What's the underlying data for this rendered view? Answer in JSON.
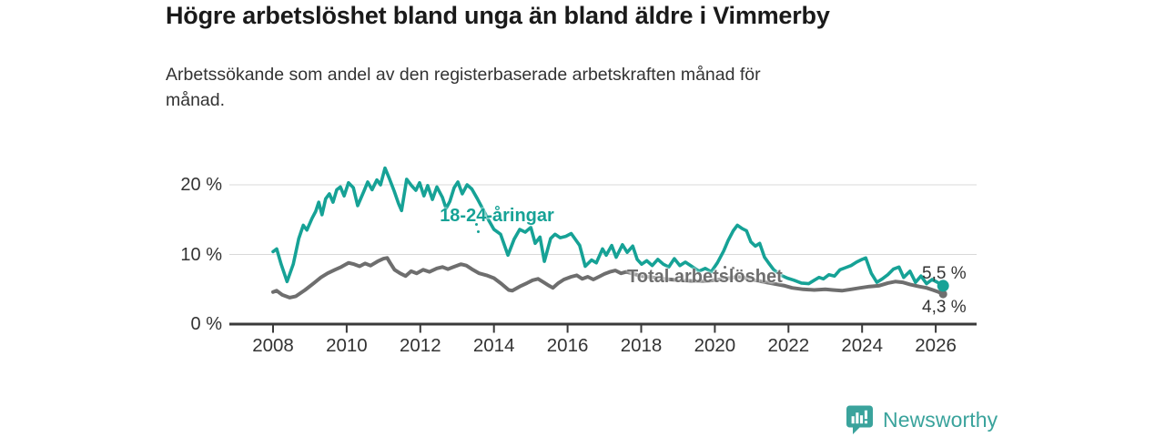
{
  "header": {
    "title": "Högre arbetslöshet bland unga än bland äldre i Vimmerby",
    "subtitle": "Arbetssökande som andel av den registerbaserade arbetskraften månad för månad."
  },
  "branding": {
    "logo_text": "Newsworthy",
    "logo_icon": "chart-bars-speech-bubble-icon",
    "brand_color": "#3aa39c"
  },
  "chart_data": {
    "type": "line",
    "title": "Högre arbetslöshet bland unga än bland äldre i Vimmerby",
    "subtitle": "Arbetssökande som andel av den registerbaserade arbetskraften månad för månad.",
    "xlabel": "",
    "ylabel": "",
    "grid": true,
    "legend_position": "inline-labels",
    "x_axis": {
      "ticks": [
        2008,
        2010,
        2012,
        2014,
        2016,
        2018,
        2020,
        2022,
        2024,
        2026
      ],
      "range": [
        2006.8,
        2027.1
      ]
    },
    "y_axis": {
      "ticks": [
        0,
        10,
        20
      ],
      "tick_labels": [
        "0 %",
        "10 %",
        "20 %"
      ],
      "range": [
        0,
        24
      ]
    },
    "style": {
      "grid_color": "#d9d9d9",
      "axis_color": "#3a3a3a",
      "tick_label_color": "#333333"
    },
    "series": [
      {
        "name": "18-24-åringar",
        "color": "#16a296",
        "line_width": 3.6,
        "end_label": "5,5 %",
        "end_value": 5.5,
        "end_dot": true,
        "dot_radius": 6.5,
        "points": [
          [
            2008.0,
            10.4
          ],
          [
            2008.1,
            10.8
          ],
          [
            2008.22,
            8.6
          ],
          [
            2008.38,
            6.1
          ],
          [
            2008.55,
            8.6
          ],
          [
            2008.7,
            12.3
          ],
          [
            2008.82,
            14.2
          ],
          [
            2008.92,
            13.5
          ],
          [
            2009.06,
            15.2
          ],
          [
            2009.16,
            16.2
          ],
          [
            2009.24,
            17.5
          ],
          [
            2009.33,
            15.7
          ],
          [
            2009.43,
            18.0
          ],
          [
            2009.53,
            18.7
          ],
          [
            2009.63,
            17.5
          ],
          [
            2009.73,
            19.3
          ],
          [
            2009.83,
            19.7
          ],
          [
            2009.93,
            18.4
          ],
          [
            2010.05,
            20.3
          ],
          [
            2010.18,
            19.6
          ],
          [
            2010.3,
            17.0
          ],
          [
            2010.47,
            19.1
          ],
          [
            2010.57,
            20.4
          ],
          [
            2010.69,
            19.3
          ],
          [
            2010.82,
            20.7
          ],
          [
            2010.92,
            20.0
          ],
          [
            2011.04,
            22.4
          ],
          [
            2011.16,
            20.9
          ],
          [
            2011.29,
            19.1
          ],
          [
            2011.41,
            17.3
          ],
          [
            2011.49,
            16.3
          ],
          [
            2011.63,
            20.8
          ],
          [
            2011.76,
            19.9
          ],
          [
            2011.88,
            19.2
          ],
          [
            2011.98,
            20.3
          ],
          [
            2012.1,
            18.4
          ],
          [
            2012.2,
            19.9
          ],
          [
            2012.33,
            17.9
          ],
          [
            2012.45,
            19.7
          ],
          [
            2012.6,
            18.2
          ],
          [
            2012.7,
            16.6
          ],
          [
            2012.8,
            17.6
          ],
          [
            2012.92,
            19.6
          ],
          [
            2013.02,
            20.4
          ],
          [
            2013.14,
            18.7
          ],
          [
            2013.27,
            20.0
          ],
          [
            2013.4,
            19.4
          ],
          [
            2013.55,
            18.0
          ],
          [
            2013.7,
            16.5
          ],
          [
            2013.85,
            15.0
          ],
          [
            2014.0,
            13.6
          ],
          [
            2014.18,
            12.9
          ],
          [
            2014.38,
            9.9
          ],
          [
            2014.55,
            12.2
          ],
          [
            2014.7,
            13.6
          ],
          [
            2014.85,
            13.2
          ],
          [
            2015.0,
            13.9
          ],
          [
            2015.12,
            11.6
          ],
          [
            2015.25,
            12.5
          ],
          [
            2015.37,
            9.0
          ],
          [
            2015.54,
            12.3
          ],
          [
            2015.66,
            12.9
          ],
          [
            2015.8,
            12.4
          ],
          [
            2015.95,
            12.6
          ],
          [
            2016.1,
            13.0
          ],
          [
            2016.33,
            11.3
          ],
          [
            2016.48,
            8.3
          ],
          [
            2016.65,
            9.2
          ],
          [
            2016.78,
            8.8
          ],
          [
            2016.95,
            10.8
          ],
          [
            2017.05,
            9.9
          ],
          [
            2017.2,
            11.3
          ],
          [
            2017.32,
            9.6
          ],
          [
            2017.49,
            11.4
          ],
          [
            2017.62,
            10.3
          ],
          [
            2017.77,
            11.2
          ],
          [
            2017.89,
            9.3
          ],
          [
            2018.01,
            8.6
          ],
          [
            2018.15,
            9.1
          ],
          [
            2018.3,
            8.4
          ],
          [
            2018.45,
            9.3
          ],
          [
            2018.6,
            8.6
          ],
          [
            2018.75,
            8.2
          ],
          [
            2018.9,
            9.4
          ],
          [
            2019.05,
            8.4
          ],
          [
            2019.2,
            8.9
          ],
          [
            2019.4,
            8.2
          ],
          [
            2019.57,
            7.6
          ],
          [
            2019.74,
            8.0
          ],
          [
            2019.9,
            7.5
          ],
          [
            2020.07,
            8.8
          ],
          [
            2020.24,
            10.5
          ],
          [
            2020.36,
            12.0
          ],
          [
            2020.5,
            13.4
          ],
          [
            2020.61,
            14.2
          ],
          [
            2020.75,
            13.7
          ],
          [
            2020.86,
            13.4
          ],
          [
            2020.98,
            11.8
          ],
          [
            2021.1,
            11.2
          ],
          [
            2021.22,
            11.6
          ],
          [
            2021.35,
            9.6
          ],
          [
            2021.47,
            8.7
          ],
          [
            2021.6,
            7.8
          ],
          [
            2021.8,
            7.0
          ],
          [
            2021.97,
            6.6
          ],
          [
            2022.15,
            6.3
          ],
          [
            2022.35,
            5.9
          ],
          [
            2022.55,
            5.8
          ],
          [
            2022.7,
            6.3
          ],
          [
            2022.83,
            6.7
          ],
          [
            2022.95,
            6.5
          ],
          [
            2023.1,
            7.1
          ],
          [
            2023.25,
            6.9
          ],
          [
            2023.4,
            7.8
          ],
          [
            2023.55,
            8.1
          ],
          [
            2023.7,
            8.4
          ],
          [
            2023.85,
            8.9
          ],
          [
            2024.0,
            9.3
          ],
          [
            2024.1,
            9.5
          ],
          [
            2024.25,
            7.3
          ],
          [
            2024.4,
            6.0
          ],
          [
            2024.55,
            6.5
          ],
          [
            2024.7,
            7.1
          ],
          [
            2024.85,
            7.9
          ],
          [
            2025.0,
            8.2
          ],
          [
            2025.13,
            6.7
          ],
          [
            2025.3,
            7.6
          ],
          [
            2025.45,
            6.0
          ],
          [
            2025.6,
            6.9
          ],
          [
            2025.75,
            5.8
          ],
          [
            2025.9,
            6.4
          ],
          [
            2026.05,
            6.0
          ],
          [
            2026.2,
            5.5
          ]
        ]
      },
      {
        "name": "Total arbetslöshet",
        "color": "#6e6e6e",
        "line_width": 4,
        "end_label": "4,3 %",
        "end_value": 4.3,
        "end_dot": true,
        "dot_radius": 4.5,
        "points": [
          [
            2008.0,
            4.6
          ],
          [
            2008.1,
            4.8
          ],
          [
            2008.25,
            4.2
          ],
          [
            2008.45,
            3.8
          ],
          [
            2008.62,
            4.0
          ],
          [
            2008.87,
            4.9
          ],
          [
            2009.11,
            5.9
          ],
          [
            2009.3,
            6.7
          ],
          [
            2009.48,
            7.3
          ],
          [
            2009.68,
            7.8
          ],
          [
            2009.85,
            8.2
          ],
          [
            2010.05,
            8.8
          ],
          [
            2010.2,
            8.6
          ],
          [
            2010.35,
            8.3
          ],
          [
            2010.5,
            8.7
          ],
          [
            2010.65,
            8.4
          ],
          [
            2010.84,
            9.0
          ],
          [
            2011.0,
            9.4
          ],
          [
            2011.1,
            9.5
          ],
          [
            2011.18,
            8.8
          ],
          [
            2011.3,
            7.8
          ],
          [
            2011.45,
            7.3
          ],
          [
            2011.6,
            6.9
          ],
          [
            2011.75,
            7.6
          ],
          [
            2011.9,
            7.3
          ],
          [
            2012.08,
            7.8
          ],
          [
            2012.25,
            7.5
          ],
          [
            2012.45,
            8.0
          ],
          [
            2012.6,
            8.2
          ],
          [
            2012.75,
            7.9
          ],
          [
            2012.9,
            8.2
          ],
          [
            2013.1,
            8.6
          ],
          [
            2013.25,
            8.4
          ],
          [
            2013.4,
            7.9
          ],
          [
            2013.6,
            7.3
          ],
          [
            2013.8,
            7.0
          ],
          [
            2014.0,
            6.6
          ],
          [
            2014.2,
            5.8
          ],
          [
            2014.4,
            4.9
          ],
          [
            2014.5,
            4.8
          ],
          [
            2014.7,
            5.4
          ],
          [
            2014.9,
            5.9
          ],
          [
            2015.05,
            6.3
          ],
          [
            2015.2,
            6.5
          ],
          [
            2015.35,
            6.0
          ],
          [
            2015.5,
            5.5
          ],
          [
            2015.6,
            5.2
          ],
          [
            2015.75,
            5.9
          ],
          [
            2015.9,
            6.4
          ],
          [
            2016.1,
            6.8
          ],
          [
            2016.25,
            7.0
          ],
          [
            2016.4,
            6.5
          ],
          [
            2016.55,
            6.8
          ],
          [
            2016.7,
            6.4
          ],
          [
            2016.85,
            6.8
          ],
          [
            2017.0,
            7.2
          ],
          [
            2017.15,
            7.5
          ],
          [
            2017.3,
            7.7
          ],
          [
            2017.45,
            7.3
          ],
          [
            2017.6,
            7.5
          ],
          [
            2017.8,
            7.2
          ],
          [
            2018.0,
            6.9
          ],
          [
            2018.3,
            6.7
          ],
          [
            2018.6,
            6.5
          ],
          [
            2019.0,
            6.3
          ],
          [
            2019.4,
            6.2
          ],
          [
            2019.8,
            6.2
          ],
          [
            2020.1,
            6.4
          ],
          [
            2020.4,
            6.6
          ],
          [
            2020.6,
            6.8
          ],
          [
            2020.85,
            6.6
          ],
          [
            2021.1,
            6.3
          ],
          [
            2021.4,
            6.0
          ],
          [
            2021.7,
            5.7
          ],
          [
            2021.9,
            5.5
          ],
          [
            2022.1,
            5.2
          ],
          [
            2022.4,
            5.0
          ],
          [
            2022.7,
            4.9
          ],
          [
            2023.0,
            5.0
          ],
          [
            2023.2,
            4.9
          ],
          [
            2023.45,
            4.8
          ],
          [
            2023.7,
            5.0
          ],
          [
            2023.95,
            5.2
          ],
          [
            2024.2,
            5.4
          ],
          [
            2024.45,
            5.5
          ],
          [
            2024.7,
            5.9
          ],
          [
            2024.9,
            6.1
          ],
          [
            2025.1,
            6.0
          ],
          [
            2025.3,
            5.7
          ],
          [
            2025.55,
            5.4
          ],
          [
            2025.75,
            5.2
          ],
          [
            2025.92,
            4.9
          ],
          [
            2026.08,
            4.6
          ],
          [
            2026.2,
            4.3
          ]
        ]
      }
    ]
  }
}
